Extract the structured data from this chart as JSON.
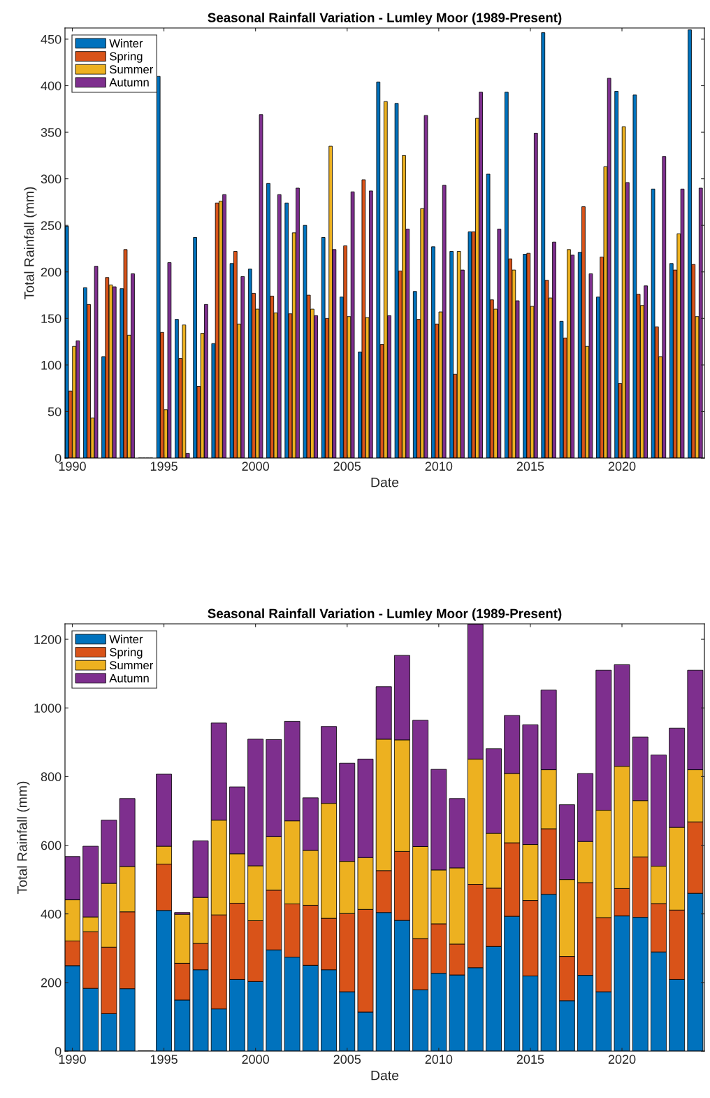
{
  "chart_data": [
    {
      "type": "bar",
      "title": "Seasonal Rainfall Variation - Lumley Moor (1989-Present)",
      "xlabel": "Date",
      "ylabel": "Total Rainfall (mm)",
      "x": [
        1990,
        1991,
        1992,
        1993,
        1994,
        1995,
        1996,
        1997,
        1998,
        1999,
        2000,
        2001,
        2002,
        2003,
        2004,
        2005,
        2006,
        2007,
        2008,
        2009,
        2010,
        2011,
        2012,
        2013,
        2014,
        2015,
        2016,
        2017,
        2018,
        2019,
        2020,
        2021,
        2022,
        2023,
        2024
      ],
      "series": [
        {
          "name": "Winter",
          "color": "#0072bd",
          "values": [
            249,
            183,
            109,
            182,
            0,
            410,
            149,
            237,
            123,
            209,
            203,
            295,
            274,
            250,
            237,
            173,
            114,
            404,
            381,
            179,
            227,
            222,
            243,
            305,
            393,
            219,
            457,
            147,
            221,
            173,
            394,
            390,
            289,
            209,
            460
          ]
        },
        {
          "name": "Spring",
          "color": "#d95319",
          "values": [
            72,
            165,
            194,
            224,
            0,
            135,
            107,
            77,
            274,
            222,
            177,
            174,
            155,
            175,
            150,
            228,
            299,
            122,
            201,
            149,
            144,
            90,
            243,
            170,
            214,
            220,
            191,
            129,
            270,
            216,
            80,
            176,
            141,
            202,
            208
          ]
        },
        {
          "name": "Summer",
          "color": "#edb120",
          "values": [
            120,
            43,
            186,
            132,
            0,
            52,
            143,
            134,
            276,
            144,
            160,
            156,
            242,
            160,
            335,
            152,
            151,
            383,
            325,
            268,
            157,
            222,
            365,
            160,
            202,
            163,
            172,
            224,
            120,
            313,
            356,
            164,
            109,
            241,
            152
          ]
        },
        {
          "name": "Autumn",
          "color": "#7e2f8e",
          "values": [
            126,
            206,
            184,
            198,
            0,
            210,
            5,
            165,
            283,
            195,
            369,
            283,
            290,
            153,
            224,
            286,
            287,
            153,
            246,
            368,
            293,
            202,
            393,
            246,
            169,
            349,
            232,
            218,
            198,
            408,
            296,
            185,
            324,
            289,
            290
          ]
        }
      ],
      "xlim": [
        1989.6,
        2024.5
      ],
      "xticks": [
        1990,
        1995,
        2000,
        2005,
        2010,
        2015,
        2020
      ],
      "ylim": [
        0,
        462
      ],
      "yticks": [
        0,
        50,
        100,
        150,
        200,
        250,
        300,
        350,
        400,
        450
      ],
      "legend": "top left",
      "grid": false
    },
    {
      "type": "bar",
      "stacked": true,
      "title": "Seasonal Rainfall Variation - Lumley Moor (1989-Present)",
      "xlabel": "Date",
      "ylabel": "Total Rainfall (mm)",
      "x": [
        1990,
        1991,
        1992,
        1993,
        1994,
        1995,
        1996,
        1997,
        1998,
        1999,
        2000,
        2001,
        2002,
        2003,
        2004,
        2005,
        2006,
        2007,
        2008,
        2009,
        2010,
        2011,
        2012,
        2013,
        2014,
        2015,
        2016,
        2017,
        2018,
        2019,
        2020,
        2021,
        2022,
        2023,
        2024
      ],
      "series": [
        {
          "name": "Winter",
          "color": "#0072bd",
          "values": [
            249,
            183,
            109,
            182,
            0,
            410,
            149,
            237,
            123,
            209,
            203,
            295,
            274,
            250,
            237,
            173,
            114,
            404,
            381,
            179,
            227,
            222,
            243,
            305,
            393,
            219,
            457,
            147,
            221,
            173,
            394,
            390,
            289,
            209,
            460
          ]
        },
        {
          "name": "Spring",
          "color": "#d95319",
          "values": [
            72,
            165,
            194,
            224,
            0,
            135,
            107,
            77,
            274,
            222,
            177,
            174,
            155,
            175,
            150,
            228,
            299,
            122,
            201,
            149,
            144,
            90,
            243,
            170,
            214,
            220,
            191,
            129,
            270,
            216,
            80,
            176,
            141,
            202,
            208
          ]
        },
        {
          "name": "Summer",
          "color": "#edb120",
          "values": [
            120,
            43,
            186,
            132,
            0,
            52,
            143,
            134,
            276,
            144,
            160,
            156,
            242,
            160,
            335,
            152,
            151,
            383,
            325,
            268,
            157,
            222,
            365,
            160,
            202,
            163,
            172,
            224,
            120,
            313,
            356,
            164,
            109,
            241,
            152
          ]
        },
        {
          "name": "Autumn",
          "color": "#7e2f8e",
          "values": [
            126,
            206,
            184,
            198,
            0,
            210,
            5,
            165,
            283,
            195,
            369,
            283,
            290,
            153,
            224,
            286,
            287,
            153,
            246,
            368,
            293,
            202,
            393,
            246,
            169,
            349,
            232,
            218,
            198,
            408,
            296,
            185,
            324,
            289,
            290
          ]
        }
      ],
      "xlim": [
        1989.6,
        2024.5
      ],
      "xticks": [
        1990,
        1995,
        2000,
        2005,
        2010,
        2015,
        2020
      ],
      "ylim": [
        0,
        1245
      ],
      "yticks": [
        0,
        200,
        400,
        600,
        800,
        1000,
        1200
      ],
      "legend": "top left",
      "grid": false
    }
  ]
}
